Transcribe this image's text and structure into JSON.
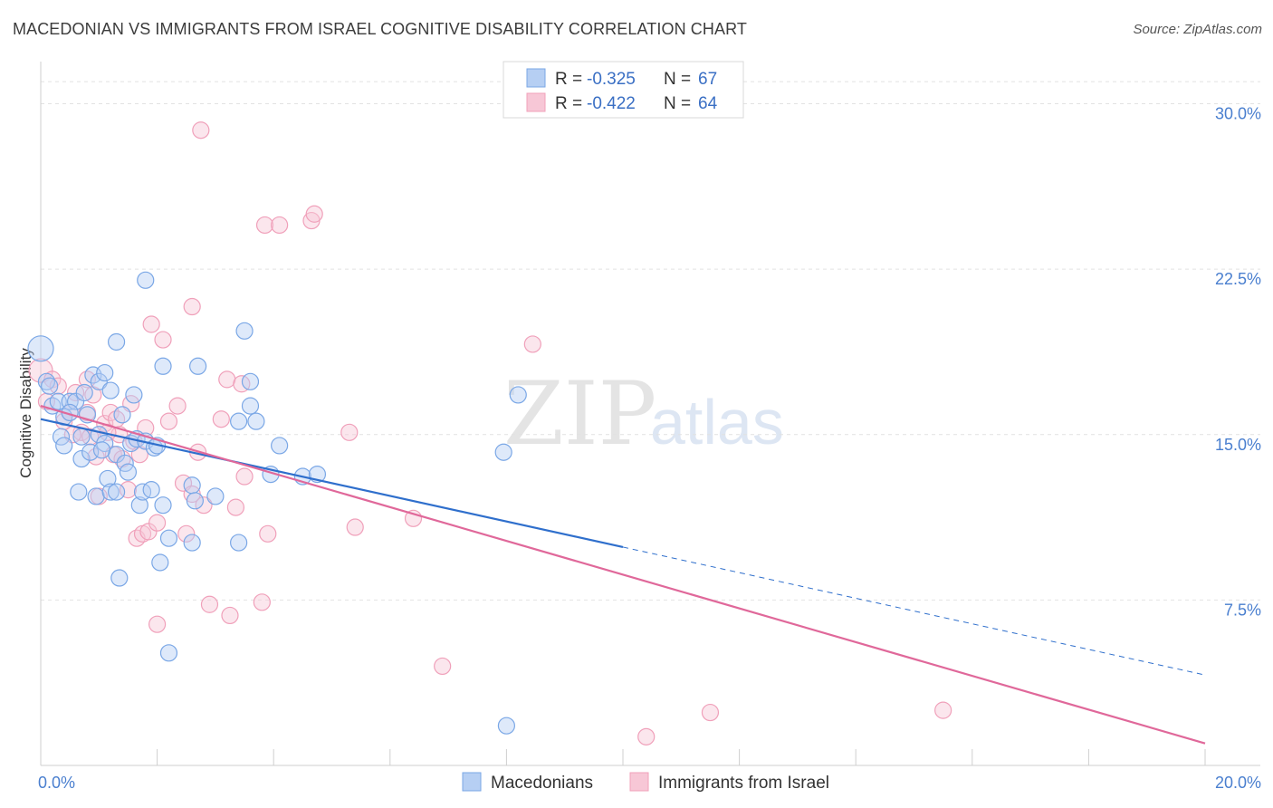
{
  "title": "MACEDONIAN VS IMMIGRANTS FROM ISRAEL COGNITIVE DISABILITY CORRELATION CHART",
  "source": "Source: ZipAtlas.com",
  "watermark": {
    "part1": "ZIP",
    "part2": "atlas"
  },
  "chart_data": {
    "type": "scatter",
    "ylabel": "Cognitive Disability",
    "xlim": [
      0,
      20
    ],
    "ylim": [
      0,
      31.5
    ],
    "x_ticks": [
      "0.0%",
      "20.0%"
    ],
    "y_ticks": [
      {
        "value": 7.5,
        "label": "7.5%"
      },
      {
        "value": 15.0,
        "label": "15.0%"
      },
      {
        "value": 22.5,
        "label": "22.5%"
      },
      {
        "value": 30.0,
        "label": "30.0%"
      }
    ],
    "grid": "horizontal dashed",
    "legend_top": [
      {
        "r_label": "R = ",
        "r": "-0.325",
        "n_label": "N = ",
        "n": "67"
      },
      {
        "r_label": "R = ",
        "r": "-0.422",
        "n_label": "N = ",
        "n": "64"
      }
    ],
    "series": [
      {
        "name": "Macedonians",
        "color": "#7aa7e6",
        "line_color": "#2f6fcc",
        "trend": {
          "x0": 0,
          "y0": 15.7,
          "x1": 10,
          "y1": 9.9,
          "dash_to_x": 20,
          "dash_to_y": 4.1
        },
        "points": [
          [
            0.0,
            18.9
          ],
          [
            0.1,
            17.4
          ],
          [
            0.2,
            16.3
          ],
          [
            0.3,
            16.5
          ],
          [
            0.4,
            15.8
          ],
          [
            0.5,
            16.5
          ],
          [
            0.35,
            14.9
          ],
          [
            0.4,
            14.5
          ],
          [
            0.6,
            16.5
          ],
          [
            0.7,
            14.9
          ],
          [
            0.7,
            13.9
          ],
          [
            0.65,
            12.4
          ],
          [
            0.75,
            16.9
          ],
          [
            0.8,
            15.9
          ],
          [
            0.85,
            14.2
          ],
          [
            0.9,
            17.7
          ],
          [
            0.95,
            12.2
          ],
          [
            1.0,
            15.0
          ],
          [
            1.0,
            17.4
          ],
          [
            1.1,
            17.8
          ],
          [
            1.1,
            14.6
          ],
          [
            1.15,
            13.0
          ],
          [
            1.2,
            12.4
          ],
          [
            1.2,
            17.0
          ],
          [
            1.3,
            14.1
          ],
          [
            1.3,
            12.4
          ],
          [
            1.3,
            19.2
          ],
          [
            1.35,
            8.5
          ],
          [
            1.4,
            15.9
          ],
          [
            1.45,
            13.7
          ],
          [
            1.5,
            13.3
          ],
          [
            1.55,
            14.6
          ],
          [
            1.6,
            16.8
          ],
          [
            1.65,
            14.8
          ],
          [
            1.7,
            11.8
          ],
          [
            1.75,
            12.4
          ],
          [
            1.8,
            14.7
          ],
          [
            1.8,
            22.0
          ],
          [
            1.9,
            12.5
          ],
          [
            1.95,
            14.4
          ],
          [
            2.0,
            14.5
          ],
          [
            2.05,
            9.2
          ],
          [
            2.1,
            11.8
          ],
          [
            2.1,
            18.1
          ],
          [
            2.2,
            5.1
          ],
          [
            2.2,
            10.3
          ],
          [
            2.6,
            10.1
          ],
          [
            2.6,
            12.7
          ],
          [
            2.65,
            12.0
          ],
          [
            2.7,
            18.1
          ],
          [
            3.0,
            12.2
          ],
          [
            3.4,
            15.6
          ],
          [
            3.4,
            10.1
          ],
          [
            3.5,
            19.7
          ],
          [
            3.6,
            17.4
          ],
          [
            3.6,
            16.3
          ],
          [
            3.7,
            15.6
          ],
          [
            3.95,
            13.2
          ],
          [
            4.1,
            14.5
          ],
          [
            4.5,
            13.1
          ],
          [
            4.75,
            13.2
          ],
          [
            7.95,
            14.2
          ],
          [
            8.2,
            16.8
          ],
          [
            8.0,
            1.8
          ],
          [
            0.15,
            17.2
          ],
          [
            0.5,
            16.0
          ],
          [
            1.05,
            14.3
          ]
        ],
        "point_sizes": {
          "large_first": true
        }
      },
      {
        "name": "Immigrants from Israel",
        "color": "#f0a0ba",
        "line_color": "#e0689a",
        "trend": {
          "x0": 0,
          "y0": 16.3,
          "x1": 20,
          "y1": 1.0
        },
        "points": [
          [
            0.0,
            17.9
          ],
          [
            0.1,
            16.5
          ],
          [
            0.2,
            17.5
          ],
          [
            0.3,
            17.2
          ],
          [
            0.4,
            15.6
          ],
          [
            0.5,
            16.0
          ],
          [
            0.6,
            16.9
          ],
          [
            0.7,
            15.1
          ],
          [
            0.8,
            16.0
          ],
          [
            0.8,
            17.5
          ],
          [
            0.85,
            14.9
          ],
          [
            0.9,
            16.8
          ],
          [
            0.95,
            14.0
          ],
          [
            1.0,
            12.2
          ],
          [
            1.1,
            15.5
          ],
          [
            1.2,
            16.0
          ],
          [
            1.25,
            14.1
          ],
          [
            1.3,
            15.7
          ],
          [
            1.35,
            15.0
          ],
          [
            1.4,
            13.9
          ],
          [
            1.5,
            12.5
          ],
          [
            1.55,
            16.4
          ],
          [
            1.6,
            14.7
          ],
          [
            1.65,
            10.3
          ],
          [
            1.7,
            14.1
          ],
          [
            1.75,
            10.5
          ],
          [
            1.8,
            15.3
          ],
          [
            1.85,
            10.6
          ],
          [
            1.9,
            20.0
          ],
          [
            2.0,
            11.0
          ],
          [
            2.0,
            6.4
          ],
          [
            2.1,
            19.3
          ],
          [
            2.2,
            15.6
          ],
          [
            2.35,
            16.3
          ],
          [
            2.45,
            12.8
          ],
          [
            2.5,
            10.5
          ],
          [
            2.6,
            12.3
          ],
          [
            2.6,
            20.8
          ],
          [
            2.7,
            14.2
          ],
          [
            2.75,
            28.8
          ],
          [
            2.8,
            11.8
          ],
          [
            2.9,
            7.3
          ],
          [
            3.1,
            15.7
          ],
          [
            3.2,
            17.5
          ],
          [
            3.25,
            6.8
          ],
          [
            3.35,
            11.7
          ],
          [
            3.45,
            17.3
          ],
          [
            3.5,
            13.1
          ],
          [
            3.8,
            7.4
          ],
          [
            3.85,
            24.5
          ],
          [
            3.9,
            10.5
          ],
          [
            4.1,
            24.5
          ],
          [
            4.65,
            24.7
          ],
          [
            4.7,
            25.0
          ],
          [
            5.3,
            15.1
          ],
          [
            5.4,
            10.8
          ],
          [
            6.4,
            11.2
          ],
          [
            6.9,
            4.5
          ],
          [
            8.45,
            19.1
          ],
          [
            10.4,
            1.3
          ],
          [
            11.5,
            2.4
          ],
          [
            15.5,
            2.5
          ],
          [
            0.55,
            15.0
          ],
          [
            1.15,
            15.1
          ]
        ]
      }
    ]
  },
  "legend_bottom": [
    {
      "label": "Macedonians",
      "color": "#b6cff3",
      "stroke": "#7aa7e6"
    },
    {
      "label": "Immigrants from Israel",
      "color": "#f7c7d6",
      "stroke": "#f0a0ba"
    }
  ]
}
